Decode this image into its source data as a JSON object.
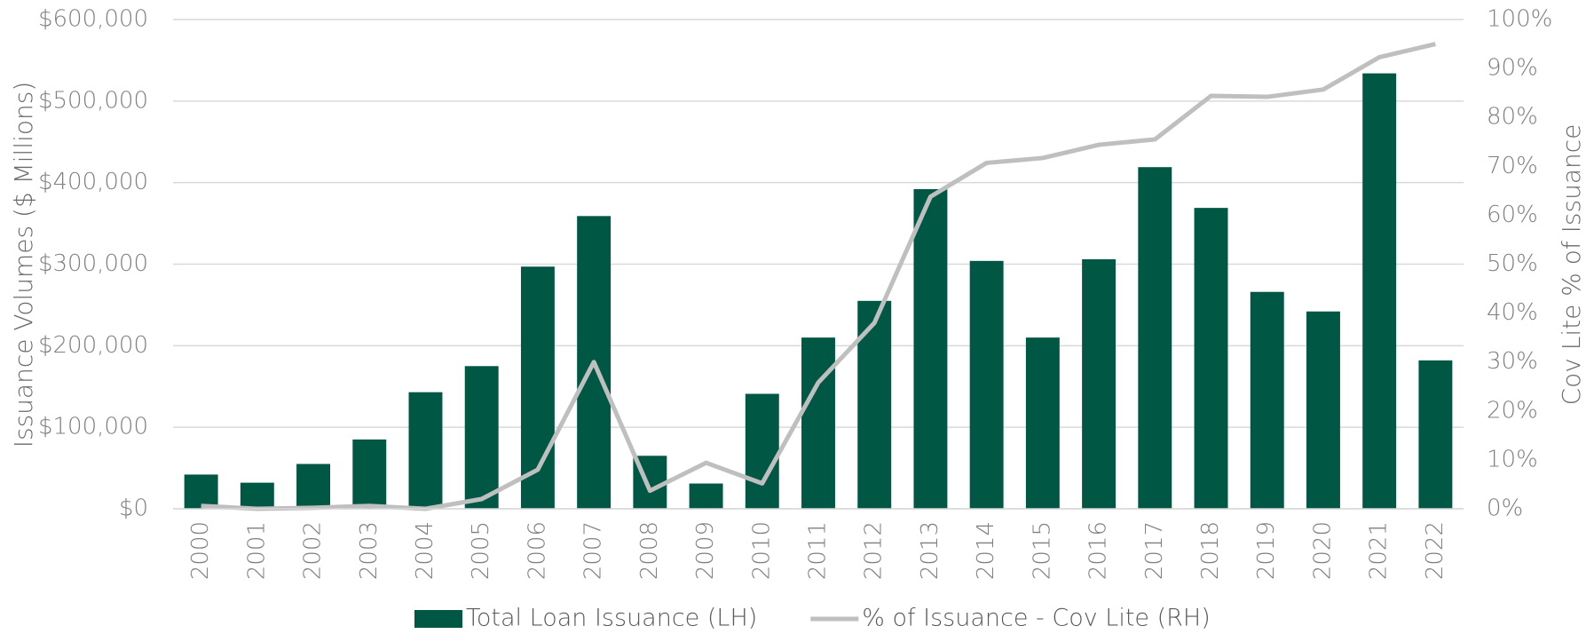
{
  "chart_data": {
    "type": "bar-line",
    "y_label": "Issuance Volumes ($ Millions)",
    "y2_label": "Cov Lite % of Issuance",
    "categories": [
      "2000",
      "2001",
      "2002",
      "2003",
      "2004",
      "2005",
      "2006",
      "2007",
      "2008",
      "2009",
      "2010",
      "2011",
      "2012",
      "2013",
      "2014",
      "2015",
      "2016",
      "2017",
      "2018",
      "2019",
      "2020",
      "2021",
      "2022"
    ],
    "series": [
      {
        "name": "Total Loan Issuance (LH)",
        "type": "bar",
        "color": "#005844",
        "values": [
          42000,
          32000,
          55000,
          85000,
          143000,
          175000,
          297000,
          359000,
          65000,
          31000,
          141000,
          210000,
          255000,
          392000,
          304000,
          210000,
          306000,
          419000,
          369000,
          266000,
          242000,
          534000,
          182000
        ]
      },
      {
        "name": "% of Issuance - Cov Lite (RH)",
        "type": "line",
        "axis": "y2",
        "color": "#bfbfbf",
        "values": [
          0.6,
          0,
          0.2,
          0.6,
          0,
          2,
          8,
          30,
          3.7,
          9.4,
          5.2,
          25.8,
          38,
          63.8,
          70.7,
          71.7,
          74.4,
          75.5,
          84.4,
          84.2,
          85.7,
          92.3,
          95
        ]
      }
    ],
    "ylim": [
      0,
      600000
    ],
    "yticks": [
      {
        "value": 0,
        "label": "$0"
      },
      {
        "value": 100000,
        "label": "$100,000"
      },
      {
        "value": 200000,
        "label": "$200,000"
      },
      {
        "value": 300000,
        "label": "$300,000"
      },
      {
        "value": 400000,
        "label": "$400,000"
      },
      {
        "value": 500000,
        "label": "$500,000"
      },
      {
        "value": 600000,
        "label": "$600,000"
      }
    ],
    "y2lim": [
      0,
      100
    ],
    "y2ticks": [
      {
        "value": 0,
        "label": "0%"
      },
      {
        "value": 10,
        "label": "10%"
      },
      {
        "value": 20,
        "label": "20%"
      },
      {
        "value": 30,
        "label": "30%"
      },
      {
        "value": 40,
        "label": "40%"
      },
      {
        "value": 50,
        "label": "50%"
      },
      {
        "value": 60,
        "label": "60%"
      },
      {
        "value": 70,
        "label": "70%"
      },
      {
        "value": 80,
        "label": "80%"
      },
      {
        "value": 90,
        "label": "90%"
      },
      {
        "value": 100,
        "label": "100%"
      }
    ],
    "grid": true,
    "legend": "bottom"
  }
}
